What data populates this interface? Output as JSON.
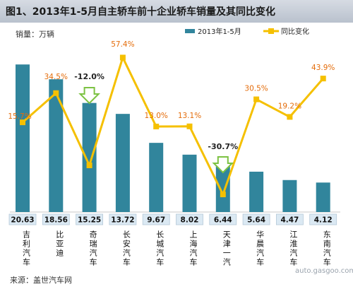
{
  "chart_data": {
    "type": "bar",
    "title": "图1、2013年1-5月自主轿车前十企业轿车销量及其同比变化",
    "ylabel": "销量：万辆",
    "source": "来源：盖世汽车网",
    "watermark": "auto.gasgoo.com",
    "categories": [
      "吉利汽车",
      "比亚迪",
      "奇瑞汽车",
      "长安汽车",
      "长城汽车",
      "上海汽车",
      "天津一汽",
      "华晨汽车",
      "江淮汽车",
      "东南汽车"
    ],
    "series": [
      {
        "name": "2013年1-5月",
        "type": "bar",
        "color": "#31859c",
        "values": [
          20.63,
          18.56,
          15.25,
          13.72,
          9.67,
          8.02,
          6.44,
          5.64,
          4.47,
          4.12
        ]
      },
      {
        "name": "同比变化",
        "type": "line",
        "color": "#f5c000",
        "values": [
          15.7,
          34.5,
          -12.0,
          57.4,
          13.0,
          13.1,
          -30.7,
          30.5,
          19.2,
          43.9
        ]
      }
    ],
    "value_labels": [
      "20.63",
      "18.56",
      "15.25",
      "13.72",
      "9.67",
      "8.02",
      "6.44",
      "5.64",
      "4.47",
      "4.12"
    ],
    "pct_labels": [
      "15.7%",
      "34.5%",
      "-12.0%",
      "57.4%",
      "13.0%",
      "13.1%",
      "-30.7%",
      "30.5%",
      "19.2%",
      "43.9%"
    ],
    "legend_position": "top-right",
    "grid": false,
    "colors": {
      "bar": "#31859c",
      "line": "#f5c000",
      "pct_label": "#e46c0a",
      "arrow": "#7cc242"
    }
  }
}
